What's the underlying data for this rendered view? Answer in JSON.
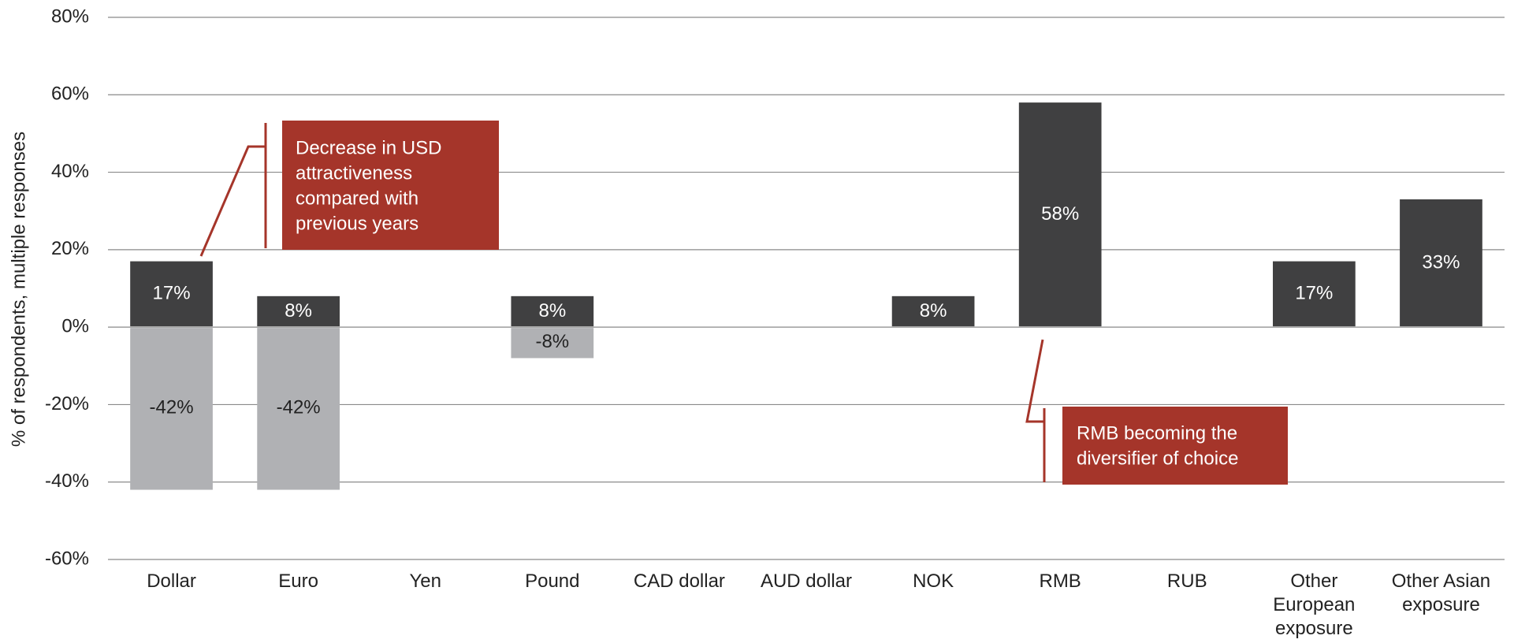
{
  "chart_data": {
    "type": "bar",
    "y_axis_label": "% of respondents, multiple responses",
    "categories": [
      "Dollar",
      "Euro",
      "Yen",
      "Pound",
      "CAD dollar",
      "AUD dollar",
      "NOK",
      "RMB",
      "RUB",
      "Other European exposure",
      "Other Asian exposure"
    ],
    "series": [
      {
        "color": "#404041",
        "label_color": "#ffffff",
        "values": [
          17,
          8,
          null,
          8,
          null,
          null,
          8,
          58,
          null,
          17,
          33
        ],
        "value_labels": [
          "17%",
          "8%",
          null,
          "8%",
          null,
          null,
          "8%",
          "58%",
          null,
          "17%",
          "33%"
        ]
      },
      {
        "color": "#b0b1b4",
        "label_color": "#222222",
        "values": [
          -42,
          -42,
          null,
          -8,
          null,
          null,
          null,
          null,
          null,
          null,
          null
        ],
        "value_labels": [
          "-42%",
          "-42%",
          null,
          "-8%",
          null,
          null,
          null,
          null,
          null,
          null,
          null
        ]
      }
    ],
    "ylim": [
      -60,
      80
    ],
    "yticks": [
      {
        "value": -60,
        "label": "-60%"
      },
      {
        "value": -40,
        "label": "-40%"
      },
      {
        "value": -20,
        "label": "-20%"
      },
      {
        "value": 0,
        "label": "0%"
      },
      {
        "value": 20,
        "label": "20%"
      },
      {
        "value": 40,
        "label": "40%"
      },
      {
        "value": 60,
        "label": "60%"
      },
      {
        "value": 80,
        "label": "80%"
      }
    ],
    "grid": true,
    "annotations": [
      {
        "lines": [
          "Decrease in USD",
          "attractiveness",
          "compared with",
          "previous years"
        ],
        "color": "#a5352a"
      },
      {
        "lines": [
          "RMB becoming the",
          "diversifier of choice"
        ],
        "color": "#a5352a"
      }
    ]
  }
}
